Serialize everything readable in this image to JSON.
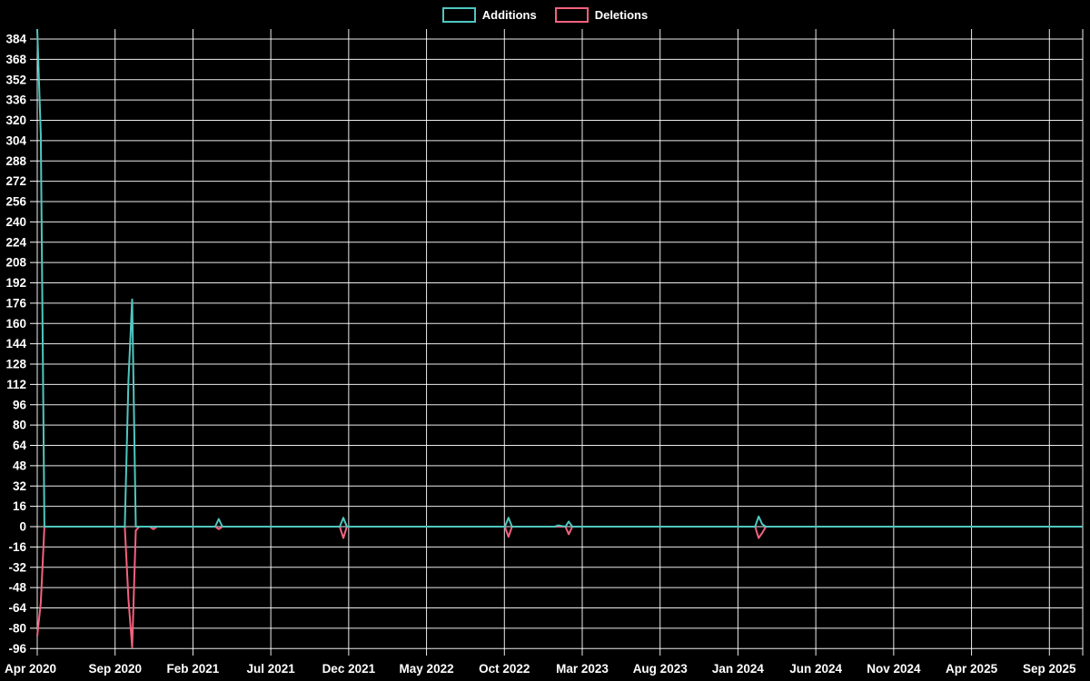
{
  "page": {
    "background": "#000000",
    "text_color": "#ffffff",
    "grid_color": "rgba(255,255,255,0.92)"
  },
  "legend": {
    "items": [
      {
        "label": "Additions",
        "color": "#4fc7c0"
      },
      {
        "label": "Deletions",
        "color": "#f4627e"
      }
    ]
  },
  "chart_data": {
    "type": "line",
    "title": "",
    "xlabel": "",
    "ylabel": "",
    "grid": true,
    "legend_position": "top-center",
    "x_axis": {
      "start": "Apr 2020",
      "end": "Sep 2025",
      "tick_labels": [
        "Apr 2020",
        "Sep 2020",
        "Feb 2021",
        "Jul 2021",
        "Dec 2021",
        "May 2022",
        "Oct 2022",
        "Mar 2023",
        "Aug 2023",
        "Jan 2024",
        "Jun 2024",
        "Nov 2024",
        "Apr 2025",
        "Sep 2025"
      ],
      "tick_interval_months": 5
    },
    "y_axis": {
      "min": -96,
      "max": 384,
      "step": 16,
      "tick_labels": [
        "384",
        "368",
        "352",
        "336",
        "320",
        "304",
        "288",
        "272",
        "256",
        "240",
        "224",
        "208",
        "192",
        "176",
        "160",
        "144",
        "128",
        "112",
        "96",
        "80",
        "64",
        "48",
        "32",
        "16",
        "0",
        "-16",
        "-32",
        "-48",
        "-64",
        "-80",
        "-96"
      ]
    },
    "series": [
      {
        "name": "Additions",
        "color": "#4fc7c0",
        "points": [
          [
            "2020-04-01",
            392
          ],
          [
            "2020-04-08",
            309
          ],
          [
            "2020-04-15",
            0
          ],
          [
            "2020-09-20",
            0
          ],
          [
            "2020-09-27",
            115
          ],
          [
            "2020-10-04",
            179
          ],
          [
            "2020-10-11",
            0
          ],
          [
            "2021-03-14",
            0
          ],
          [
            "2021-03-21",
            6
          ],
          [
            "2021-03-28",
            0
          ],
          [
            "2021-11-14",
            0
          ],
          [
            "2021-11-21",
            7
          ],
          [
            "2021-11-28",
            0
          ],
          [
            "2022-10-02",
            0
          ],
          [
            "2022-10-09",
            7
          ],
          [
            "2022-10-16",
            0
          ],
          [
            "2023-01-08",
            0
          ],
          [
            "2023-01-15",
            1
          ],
          [
            "2023-01-29",
            0
          ],
          [
            "2023-02-05",
            4
          ],
          [
            "2023-02-12",
            0
          ],
          [
            "2024-02-04",
            0
          ],
          [
            "2024-02-11",
            8
          ],
          [
            "2024-02-18",
            2
          ],
          [
            "2024-02-25",
            0
          ],
          [
            "2025-11-05",
            0
          ]
        ]
      },
      {
        "name": "Deletions",
        "color": "#f4627e",
        "points": [
          [
            "2020-04-01",
            -86
          ],
          [
            "2020-04-08",
            -60
          ],
          [
            "2020-04-15",
            0
          ],
          [
            "2020-09-20",
            0
          ],
          [
            "2020-09-27",
            -57
          ],
          [
            "2020-10-04",
            -95
          ],
          [
            "2020-10-11",
            -3
          ],
          [
            "2020-10-18",
            0
          ],
          [
            "2020-11-08",
            0
          ],
          [
            "2020-11-15",
            -2
          ],
          [
            "2020-11-22",
            0
          ],
          [
            "2021-03-14",
            0
          ],
          [
            "2021-03-21",
            -2
          ],
          [
            "2021-03-28",
            0
          ],
          [
            "2021-11-14",
            0
          ],
          [
            "2021-11-21",
            -9
          ],
          [
            "2021-11-28",
            0
          ],
          [
            "2022-10-02",
            0
          ],
          [
            "2022-10-09",
            -8
          ],
          [
            "2022-10-16",
            0
          ],
          [
            "2023-01-29",
            0
          ],
          [
            "2023-02-05",
            -6
          ],
          [
            "2023-02-12",
            0
          ],
          [
            "2024-02-04",
            0
          ],
          [
            "2024-02-11",
            -9
          ],
          [
            "2024-02-18",
            -5
          ],
          [
            "2024-02-25",
            0
          ],
          [
            "2025-11-05",
            0
          ]
        ]
      }
    ]
  }
}
